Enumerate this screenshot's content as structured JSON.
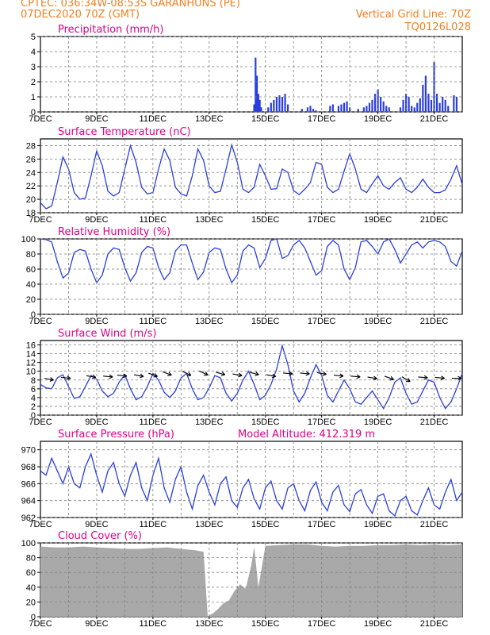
{
  "header": {
    "line1_left": "CPTEC:   036:34W-08:53S   GARANHUNS (PE)",
    "line2_left": "07DEC2020 70Z (GMT)",
    "line1_right": "Vertical Grid Line: 70Z",
    "line2_right": "TQ0126L028"
  },
  "colors": {
    "header": "#f08020",
    "panel_title": "#e0008a",
    "series": "#2a3ee0",
    "cloud": "#a9a9a9",
    "wind_arrow": "#000000",
    "grid": "#7f7f7f"
  },
  "x_axis": {
    "labels": [
      "7DEC",
      "9DEC",
      "11DEC",
      "13DEC",
      "15DEC",
      "17DEC",
      "19DEC",
      "21DEC"
    ],
    "start_day": 7,
    "end_day": 22
  },
  "chart_data": [
    {
      "type": "bar",
      "title": "Precipitation (mm/h)",
      "ylim": [
        0,
        5
      ],
      "yticks": [
        0,
        1,
        2,
        3,
        4,
        5
      ],
      "grid": true,
      "x": [
        14.6,
        14.65,
        14.7,
        14.75,
        14.8,
        14.85,
        15.1,
        15.2,
        15.3,
        15.4,
        15.5,
        15.6,
        15.7,
        15.8,
        16.3,
        16.5,
        16.6,
        16.7,
        16.8,
        17.3,
        17.4,
        17.6,
        17.7,
        17.8,
        17.9,
        18.0,
        18.3,
        18.5,
        18.6,
        18.7,
        18.8,
        18.9,
        19.0,
        19.1,
        19.2,
        19.3,
        19.4,
        19.8,
        19.9,
        20.0,
        20.1,
        20.2,
        20.3,
        20.4,
        20.5,
        20.6,
        20.7,
        20.8,
        20.9,
        21.0,
        21.1,
        21.2,
        21.3,
        21.4,
        21.5,
        21.7,
        21.8
      ],
      "values": [
        0.5,
        3.6,
        2.4,
        1.2,
        0.8,
        0.3,
        0.3,
        0.6,
        0.8,
        1.0,
        1.1,
        1.0,
        1.2,
        0.5,
        0.2,
        0.3,
        0.4,
        0.2,
        0.1,
        0.4,
        0.5,
        0.4,
        0.5,
        0.6,
        0.7,
        0.3,
        0.2,
        0.3,
        0.4,
        0.6,
        0.8,
        1.2,
        1.5,
        1.0,
        0.7,
        0.4,
        0.3,
        0.3,
        0.8,
        1.2,
        1.0,
        0.4,
        0.3,
        0.6,
        0.9,
        1.8,
        2.4,
        1.2,
        0.8,
        3.3,
        1.2,
        0.6,
        1.0,
        0.8,
        0.4,
        1.1,
        1.0
      ]
    },
    {
      "type": "line",
      "title": "Surface Temperature (nC)",
      "ylim": [
        18,
        29
      ],
      "yticks": [
        18,
        20,
        22,
        24,
        26,
        28
      ],
      "grid": true,
      "x": [
        7.0,
        7.2,
        7.4,
        7.6,
        7.8,
        8.0,
        8.2,
        8.4,
        8.6,
        8.8,
        9.0,
        9.2,
        9.4,
        9.6,
        9.8,
        10.0,
        10.2,
        10.4,
        10.6,
        10.8,
        11.0,
        11.2,
        11.4,
        11.6,
        11.8,
        12.0,
        12.2,
        12.4,
        12.6,
        12.8,
        13.0,
        13.2,
        13.4,
        13.6,
        13.8,
        14.0,
        14.2,
        14.4,
        14.6,
        14.8,
        15.0,
        15.2,
        15.4,
        15.6,
        15.8,
        16.0,
        16.2,
        16.4,
        16.6,
        16.8,
        17.0,
        17.2,
        17.4,
        17.6,
        17.8,
        18.0,
        18.2,
        18.4,
        18.6,
        18.8,
        19.0,
        19.2,
        19.4,
        19.6,
        19.8,
        20.0,
        20.2,
        20.4,
        20.6,
        20.8,
        21.0,
        21.2,
        21.4,
        21.6,
        21.8,
        22.0
      ],
      "values": [
        19.5,
        18.6,
        19.0,
        22.5,
        26.3,
        24.5,
        21.0,
        20.0,
        20.2,
        23.5,
        27.2,
        25.0,
        21.2,
        20.5,
        21.0,
        24.5,
        28.0,
        25.5,
        21.8,
        20.8,
        21.0,
        24.5,
        27.5,
        25.8,
        21.8,
        20.8,
        20.5,
        23.5,
        27.5,
        25.8,
        22.0,
        21.0,
        21.2,
        24.5,
        28.1,
        25.5,
        21.5,
        21.0,
        21.8,
        25.2,
        23.5,
        21.5,
        21.6,
        24.5,
        24.0,
        21.3,
        20.7,
        21.5,
        22.5,
        25.5,
        25.2,
        21.8,
        21.0,
        21.5,
        24.2,
        26.8,
        24.5,
        21.5,
        21.0,
        22.3,
        23.5,
        22.0,
        21.5,
        22.5,
        23.2,
        21.5,
        21.0,
        21.8,
        23.0,
        21.8,
        21.0,
        21.0,
        21.4,
        23.0,
        25.0,
        22.2
      ]
    },
    {
      "type": "line",
      "title": "Relative Humidity (%)",
      "ylim": [
        0,
        100
      ],
      "yticks": [
        0,
        20,
        40,
        60,
        80,
        100
      ],
      "grid": true,
      "x": [
        7.0,
        7.2,
        7.4,
        7.6,
        7.8,
        8.0,
        8.2,
        8.4,
        8.6,
        8.8,
        9.0,
        9.2,
        9.4,
        9.6,
        9.8,
        10.0,
        10.2,
        10.4,
        10.6,
        10.8,
        11.0,
        11.2,
        11.4,
        11.6,
        11.8,
        12.0,
        12.2,
        12.4,
        12.6,
        12.8,
        13.0,
        13.2,
        13.4,
        13.6,
        13.8,
        14.0,
        14.2,
        14.4,
        14.6,
        14.8,
        15.0,
        15.2,
        15.4,
        15.6,
        15.8,
        16.0,
        16.2,
        16.4,
        16.6,
        16.8,
        17.0,
        17.2,
        17.4,
        17.6,
        17.8,
        18.0,
        18.2,
        18.4,
        18.6,
        18.8,
        19.0,
        19.2,
        19.4,
        19.6,
        19.8,
        20.0,
        20.2,
        20.4,
        20.6,
        20.8,
        21.0,
        21.2,
        21.4,
        21.6,
        21.8,
        22.0
      ],
      "values": [
        100,
        99,
        96,
        70,
        48,
        55,
        82,
        86,
        84,
        60,
        42,
        52,
        80,
        88,
        86,
        62,
        44,
        55,
        82,
        90,
        88,
        62,
        46,
        55,
        84,
        92,
        92,
        68,
        46,
        56,
        82,
        88,
        86,
        60,
        42,
        52,
        84,
        92,
        88,
        62,
        74,
        98,
        100,
        74,
        78,
        92,
        98,
        88,
        70,
        52,
        58,
        90,
        98,
        92,
        60,
        46,
        62,
        96,
        98,
        90,
        80,
        96,
        100,
        86,
        68,
        80,
        92,
        96,
        88,
        96,
        98,
        96,
        90,
        70,
        64,
        84
      ]
    },
    {
      "type": "line",
      "title": "Surface Wind (m/s)",
      "ylim": [
        0,
        17
      ],
      "yticks": [
        0,
        2,
        4,
        6,
        8,
        10,
        12,
        14,
        16
      ],
      "grid": true,
      "x": [
        7.0,
        7.2,
        7.4,
        7.6,
        7.8,
        8.0,
        8.2,
        8.4,
        8.6,
        8.8,
        9.0,
        9.2,
        9.4,
        9.6,
        9.8,
        10.0,
        10.2,
        10.4,
        10.6,
        10.8,
        11.0,
        11.2,
        11.4,
        11.6,
        11.8,
        12.0,
        12.2,
        12.4,
        12.6,
        12.8,
        13.0,
        13.2,
        13.4,
        13.6,
        13.8,
        14.0,
        14.2,
        14.4,
        14.6,
        14.8,
        15.0,
        15.2,
        15.4,
        15.6,
        15.8,
        16.0,
        16.2,
        16.4,
        16.6,
        16.8,
        17.0,
        17.2,
        17.4,
        17.6,
        17.8,
        18.0,
        18.2,
        18.4,
        18.6,
        18.8,
        19.0,
        19.2,
        19.4,
        19.6,
        19.8,
        20.0,
        20.2,
        20.4,
        20.6,
        20.8,
        21.0,
        21.2,
        21.4,
        21.6,
        21.8,
        22.0
      ],
      "values": [
        7.0,
        6.2,
        6.0,
        8.5,
        9.2,
        6.5,
        3.8,
        4.2,
        6.5,
        9.0,
        8.2,
        5.5,
        4.2,
        5.0,
        7.5,
        9.2,
        6.0,
        3.5,
        4.2,
        6.5,
        9.5,
        8.0,
        5.2,
        4.0,
        5.5,
        8.5,
        9.5,
        6.0,
        3.5,
        4.0,
        6.2,
        9.0,
        8.5,
        5.0,
        3.2,
        5.0,
        8.0,
        10.0,
        7.0,
        3.5,
        4.5,
        7.0,
        10.5,
        15.8,
        11.5,
        5.5,
        3.0,
        5.0,
        8.5,
        11.5,
        9.0,
        4.5,
        3.0,
        5.5,
        8.0,
        6.0,
        3.0,
        2.5,
        4.0,
        5.5,
        3.5,
        1.5,
        4.0,
        7.5,
        8.5,
        5.0,
        2.5,
        3.0,
        5.5,
        8.0,
        7.5,
        4.0,
        1.5,
        3.0,
        6.0,
        9.5
      ],
      "wind_vectors": {
        "x": [
          7.3,
          7.9,
          8.8,
          9.4,
          9.9,
          10.5,
          11.0,
          11.5,
          12.2,
          12.8,
          13.4,
          14.0,
          14.6,
          15.2,
          15.8,
          16.4,
          17.0,
          17.6,
          18.2,
          18.8,
          19.4,
          20.0,
          20.6,
          21.2,
          21.8
        ],
        "speed": [
          8.2,
          8.5,
          8.8,
          8.8,
          9.0,
          9.0,
          9.2,
          9.5,
          9.5,
          9.6,
          9.5,
          9.2,
          9.5,
          9.0,
          9.5,
          9.5,
          9.5,
          9.0,
          8.8,
          8.5,
          8.5,
          8.2,
          8.6,
          8.5,
          8.4
        ],
        "direction_deg": [
          100,
          95,
          100,
          95,
          95,
          100,
          110,
          110,
          115,
          115,
          105,
          100,
          105,
          100,
          95,
          95,
          100,
          95,
          95,
          100,
          110,
          120,
          95,
          95,
          90
        ]
      }
    },
    {
      "type": "line",
      "title": "Surface Pressure (hPa)",
      "annotation": "Model Altitude: 412.319 m",
      "ylim": [
        962,
        971
      ],
      "yticks": [
        962,
        964,
        966,
        968,
        970
      ],
      "grid": true,
      "x": [
        7.0,
        7.2,
        7.4,
        7.6,
        7.8,
        8.0,
        8.2,
        8.4,
        8.6,
        8.8,
        9.0,
        9.2,
        9.4,
        9.6,
        9.8,
        10.0,
        10.2,
        10.4,
        10.6,
        10.8,
        11.0,
        11.2,
        11.4,
        11.6,
        11.8,
        12.0,
        12.2,
        12.4,
        12.6,
        12.8,
        13.0,
        13.2,
        13.4,
        13.6,
        13.8,
        14.0,
        14.2,
        14.4,
        14.6,
        14.8,
        15.0,
        15.2,
        15.4,
        15.6,
        15.8,
        16.0,
        16.2,
        16.4,
        16.6,
        16.8,
        17.0,
        17.2,
        17.4,
        17.6,
        17.8,
        18.0,
        18.2,
        18.4,
        18.6,
        18.8,
        19.0,
        19.2,
        19.4,
        19.6,
        19.8,
        20.0,
        20.2,
        20.4,
        20.6,
        20.8,
        21.0,
        21.2,
        21.4,
        21.6,
        21.8,
        22.0
      ],
      "values": [
        967.5,
        967.0,
        969.0,
        967.5,
        966.0,
        968.0,
        966.0,
        965.5,
        968.0,
        969.5,
        967.0,
        965.0,
        967.5,
        968.5,
        966.0,
        964.5,
        967.0,
        968.5,
        965.5,
        964.0,
        967.0,
        969.0,
        965.5,
        963.8,
        966.5,
        968.0,
        965.0,
        963.0,
        965.8,
        967.0,
        965.0,
        963.5,
        966.0,
        966.8,
        964.0,
        963.2,
        965.5,
        966.5,
        964.2,
        963.0,
        965.5,
        966.3,
        964.0,
        963.0,
        965.5,
        966.0,
        964.0,
        962.8,
        965.2,
        966.2,
        963.8,
        962.8,
        965.0,
        965.8,
        963.5,
        962.7,
        964.8,
        965.3,
        963.5,
        962.5,
        964.5,
        964.8,
        962.8,
        962.2,
        964.0,
        964.5,
        962.8,
        962.3,
        964.0,
        965.5,
        963.5,
        963.0,
        965.0,
        966.5,
        964.0,
        965.0
      ]
    },
    {
      "type": "area",
      "title": "Cloud Cover (%)",
      "ylim": [
        0,
        100
      ],
      "yticks": [
        0,
        20,
        40,
        60,
        80,
        100
      ],
      "grid": true,
      "x": [
        7.0,
        7.5,
        8.0,
        8.5,
        9.0,
        9.5,
        10.0,
        10.5,
        11.0,
        11.5,
        12.0,
        12.5,
        12.8,
        12.95,
        13.05,
        13.15,
        13.3,
        13.5,
        13.7,
        13.9,
        14.1,
        14.3,
        14.5,
        14.6,
        14.75,
        15.0,
        15.5,
        16.0,
        16.5,
        17.0,
        17.5,
        18.0,
        18.5,
        19.0,
        19.5,
        20.0,
        20.5,
        21.0,
        21.5,
        22.0
      ],
      "values": [
        95,
        94,
        94,
        95,
        94,
        93,
        92,
        92,
        93,
        94,
        92,
        90,
        88,
        0,
        3,
        5,
        10,
        18,
        22,
        35,
        44,
        38,
        70,
        95,
        40,
        96,
        97,
        98,
        98,
        96,
        95,
        96,
        96,
        97,
        97,
        98,
        97,
        98,
        97,
        98
      ]
    }
  ]
}
